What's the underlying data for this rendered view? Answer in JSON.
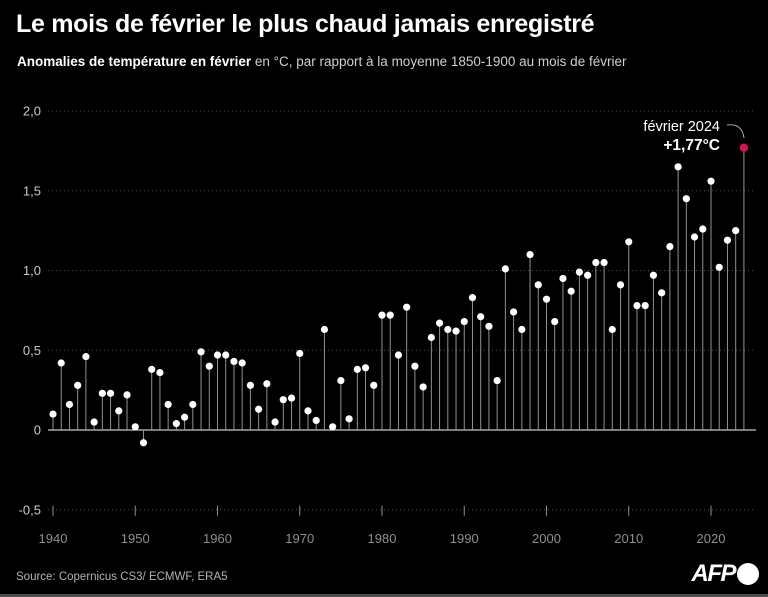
{
  "header": {
    "title": "Le mois de février le plus chaud jamais enregistré",
    "subtitle_bold": "Anomalies de température en février",
    "subtitle_rest": " en °C, par rapport à la moyenne 1850-1900 au mois de février"
  },
  "footer": {
    "source": "Source: Copernicus CS3/ ECMWF, ERA5",
    "logo_text": "AFP"
  },
  "chart_data": {
    "type": "lollipop",
    "title": "Le mois de février le plus chaud jamais enregistré",
    "subtitle": "Anomalies de température en février en °C, par rapport à la moyenne 1850-1900 au mois de février",
    "unit": "°C",
    "xlim": [
      1939,
      2025
    ],
    "ylim": [
      -0.5,
      2.0
    ],
    "grid": "horizontal-dotted",
    "x_ticks": [
      1940,
      1950,
      1960,
      1970,
      1980,
      1990,
      2000,
      2010,
      2020
    ],
    "y_ticks": [
      {
        "label": "2,0",
        "value": 2.0
      },
      {
        "label": "1,5",
        "value": 1.5
      },
      {
        "label": "1,0",
        "value": 1.0
      },
      {
        "label": "0,5",
        "value": 0.5
      },
      {
        "label": "0",
        "value": 0.0
      },
      {
        "label": "-0,5",
        "value": -0.5
      }
    ],
    "years": [
      1940,
      1941,
      1942,
      1943,
      1944,
      1945,
      1946,
      1947,
      1948,
      1949,
      1950,
      1951,
      1952,
      1953,
      1954,
      1955,
      1956,
      1957,
      1958,
      1959,
      1960,
      1961,
      1962,
      1963,
      1964,
      1965,
      1966,
      1967,
      1968,
      1969,
      1970,
      1971,
      1972,
      1973,
      1974,
      1975,
      1976,
      1977,
      1978,
      1979,
      1980,
      1981,
      1982,
      1983,
      1984,
      1985,
      1986,
      1987,
      1988,
      1989,
      1990,
      1991,
      1992,
      1993,
      1994,
      1995,
      1996,
      1997,
      1998,
      1999,
      2000,
      2001,
      2002,
      2003,
      2004,
      2005,
      2006,
      2007,
      2008,
      2009,
      2010,
      2011,
      2012,
      2013,
      2014,
      2015,
      2016,
      2017,
      2018,
      2019,
      2020,
      2021,
      2022,
      2023,
      2024
    ],
    "values": [
      0.1,
      0.42,
      0.16,
      0.28,
      0.46,
      0.05,
      0.23,
      0.23,
      0.12,
      0.22,
      0.02,
      -0.08,
      0.38,
      0.36,
      0.16,
      0.04,
      0.08,
      0.16,
      0.49,
      0.4,
      0.47,
      0.47,
      0.43,
      0.42,
      0.28,
      0.13,
      0.29,
      0.05,
      0.19,
      0.2,
      0.48,
      0.12,
      0.06,
      0.63,
      0.02,
      0.31,
      0.07,
      0.38,
      0.39,
      0.28,
      0.72,
      0.72,
      0.47,
      0.77,
      0.4,
      0.27,
      0.58,
      0.67,
      0.63,
      0.62,
      0.68,
      0.83,
      0.71,
      0.65,
      0.31,
      1.01,
      0.74,
      0.63,
      1.1,
      0.91,
      0.82,
      0.68,
      0.95,
      0.87,
      0.99,
      0.97,
      1.05,
      1.05,
      0.63,
      0.91,
      1.18,
      0.78,
      0.78,
      0.97,
      0.86,
      1.15,
      1.65,
      1.45,
      1.21,
      1.26,
      1.56,
      1.02,
      1.19,
      1.25,
      1.77
    ],
    "highlight": {
      "year": 2024,
      "value": 1.77,
      "label_line1": "février 2024",
      "label_line2": "+1,77°C",
      "color": "#d6134f"
    },
    "colors": {
      "background": "#000000",
      "dot": "#ffffff",
      "stem": "#929292",
      "grid": "#555555",
      "baseline": "#c8c8c8",
      "y_axis_text": "#c9c9c9",
      "x_axis_text": "#8f8f8f",
      "highlight": "#d6134f"
    },
    "legend": "none"
  }
}
